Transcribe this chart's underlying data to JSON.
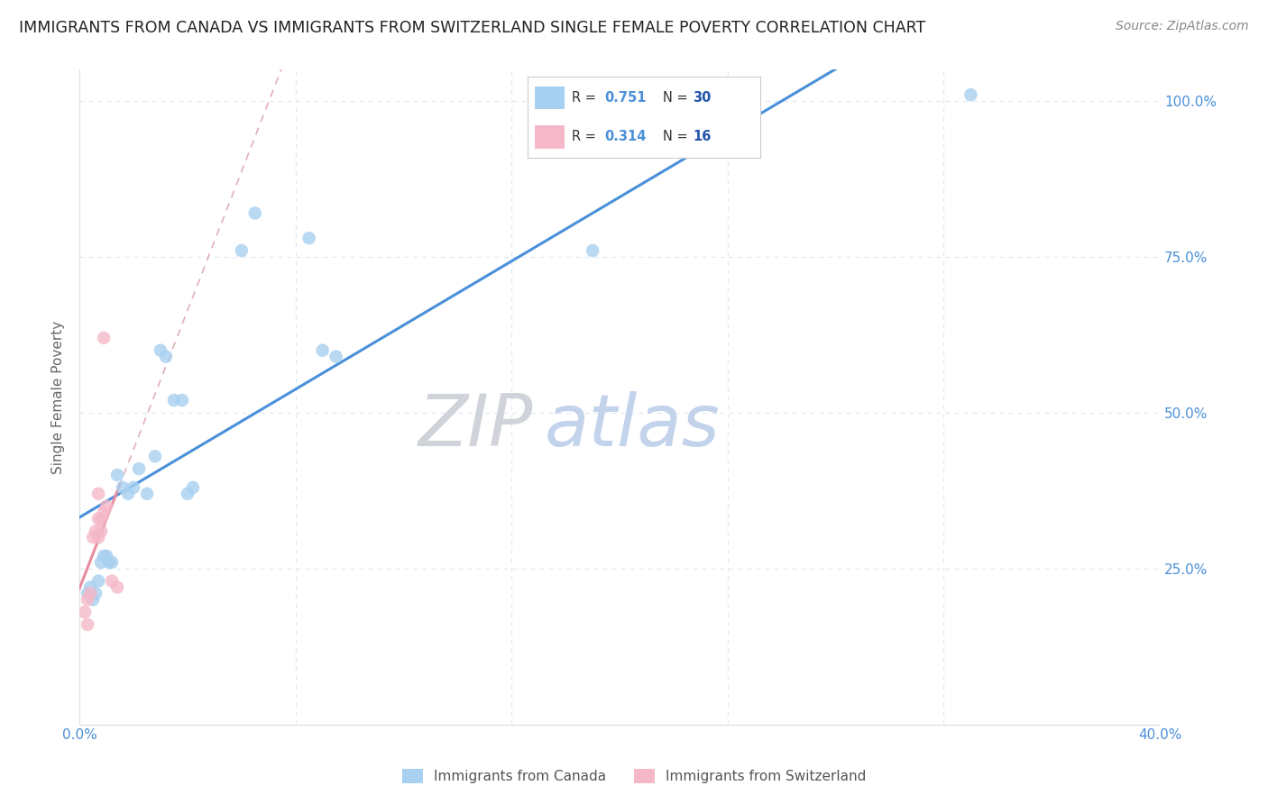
{
  "title": "IMMIGRANTS FROM CANADA VS IMMIGRANTS FROM SWITZERLAND SINGLE FEMALE POVERTY CORRELATION CHART",
  "source": "Source: ZipAtlas.com",
  "ylabel_label": "Single Female Poverty",
  "xlim": [
    0.0,
    0.4
  ],
  "ylim": [
    0.0,
    1.05
  ],
  "canada_color": "#a8d0f0",
  "switzerland_color": "#f5b8c8",
  "canada_line_color": "#4a90d9",
  "switzerland_line_color": "#e88ca0",
  "switzerland_dash_color": "#e0b0b8",
  "axis_color": "#4a90d9",
  "grid_color": "#e0e8f4",
  "legend_R_color": "#4a90d9",
  "legend_N_color": "#2255aa",
  "canada_points_x": [
    0.003,
    0.004,
    0.005,
    0.006,
    0.007,
    0.008,
    0.009,
    0.01,
    0.011,
    0.012,
    0.014,
    0.016,
    0.018,
    0.02,
    0.022,
    0.025,
    0.028,
    0.03,
    0.032,
    0.035,
    0.038,
    0.04,
    0.042,
    0.06,
    0.065,
    0.085,
    0.09,
    0.095,
    0.19,
    0.33
  ],
  "canada_points_y": [
    0.21,
    0.22,
    0.2,
    0.21,
    0.23,
    0.26,
    0.27,
    0.27,
    0.26,
    0.26,
    0.4,
    0.38,
    0.37,
    0.38,
    0.41,
    0.37,
    0.43,
    0.6,
    0.59,
    0.52,
    0.52,
    0.37,
    0.38,
    0.76,
    0.82,
    0.78,
    0.6,
    0.59,
    0.76,
    1.01
  ],
  "switzerland_points_x": [
    0.002,
    0.003,
    0.003,
    0.004,
    0.005,
    0.006,
    0.007,
    0.007,
    0.007,
    0.008,
    0.008,
    0.009,
    0.009,
    0.01,
    0.012,
    0.014
  ],
  "switzerland_points_y": [
    0.18,
    0.16,
    0.2,
    0.21,
    0.3,
    0.31,
    0.3,
    0.33,
    0.37,
    0.31,
    0.33,
    0.62,
    0.34,
    0.35,
    0.23,
    0.22
  ],
  "canada_R": 0.751,
  "canada_N": 30,
  "switzerland_R": 0.314,
  "switzerland_N": 16,
  "title_fontsize": 12.5,
  "source_fontsize": 10,
  "watermark_zip": "ZIP",
  "watermark_atlas": "atlas"
}
